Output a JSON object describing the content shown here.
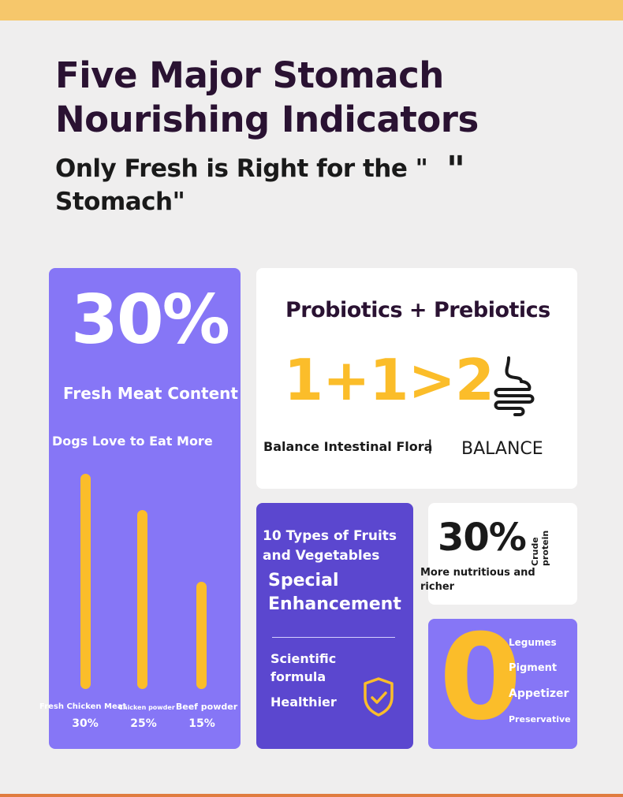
{
  "header": {
    "title": "Five Major Stomach Nourishing Indicators",
    "subtitle": "Only Fresh is Right for the \" Stomach\"",
    "quote_mark": "\""
  },
  "meat_card": {
    "big_percent": "30%",
    "label": "Fresh Meat Content",
    "tagline": "Dogs Love to Eat More",
    "bars": [
      {
        "label": "Fresh Chicken Meat",
        "value": "30%",
        "level": 30
      },
      {
        "label": "Chicken powder",
        "value": "25%",
        "level": 25
      },
      {
        "label": "Beef powder",
        "value": "15%",
        "level": 15
      }
    ]
  },
  "probiotics_card": {
    "title": "Probiotics + Prebiotics",
    "equation": "1+1>2",
    "icon": "intestine-icon",
    "balance_text": "Balance Intestinal Flora",
    "separator": "|",
    "balance_word": "BALANCE"
  },
  "fruits_card": {
    "title": "10 Types of Fruits and Vegetables",
    "special": "Special Enhancement",
    "formula": "Scientific formula",
    "healthier": "Healthier",
    "icon": "shield-check-icon"
  },
  "protein_card": {
    "number": "30%",
    "label": "Crude protein",
    "text": "More nutritious and richer"
  },
  "zero_card": {
    "digit": "0",
    "items": [
      "Legumes",
      "Pigment",
      "Appetizer",
      "Preservative"
    ]
  },
  "colors": {
    "accent_yellow": "#fbbd2a",
    "card_purple": "#8676f6",
    "card_dark_purple": "#5b47cf",
    "title_color": "#2a1232"
  }
}
